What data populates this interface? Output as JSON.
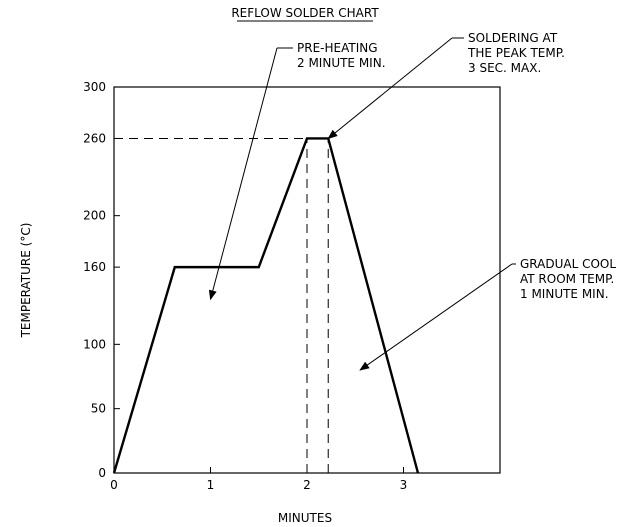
{
  "chart_data": {
    "type": "line",
    "title": "REFLOW SOLDER CHART",
    "xlabel": "MINUTES",
    "ylabel": "TEMPERATURE (°C)",
    "xlim": [
      0,
      4
    ],
    "ylim": [
      0,
      300
    ],
    "x_ticks": [
      "0",
      "1",
      "2",
      "3"
    ],
    "x_tick_values": [
      0,
      1,
      2,
      3
    ],
    "y_ticks": [
      "0",
      "50",
      "100",
      "160",
      "200",
      "260",
      "300"
    ],
    "y_tick_values": [
      0,
      50,
      100,
      160,
      200,
      260,
      300
    ],
    "grid": false,
    "series": [
      {
        "x": [
          0,
          0.63,
          1.5,
          2.0,
          2.22,
          3.15
        ],
        "y": [
          0,
          160,
          160,
          260,
          260,
          0
        ]
      }
    ],
    "reference_lines": [
      {
        "orientation": "horizontal",
        "y": 260,
        "x_from": 0,
        "x_to": 2.0
      },
      {
        "orientation": "vertical",
        "x": 2.0,
        "y_from": 0,
        "y_to": 260
      },
      {
        "orientation": "vertical",
        "x": 2.22,
        "y_from": 0,
        "y_to": 260
      }
    ],
    "annotations": [
      {
        "lines": [
          "PRE-HEATING",
          "2 MINUTE MIN."
        ],
        "target_x": 1.0,
        "target_y": 135
      },
      {
        "lines": [
          "SOLDERING AT",
          "THE PEAK TEMP.",
          "3 SEC. MAX."
        ],
        "target_x": 2.22,
        "target_y": 260
      },
      {
        "lines": [
          "GRADUAL COOL",
          "AT ROOM TEMP.",
          "1 MINUTE MIN."
        ],
        "target_x": 2.55,
        "target_y": 80
      }
    ]
  }
}
